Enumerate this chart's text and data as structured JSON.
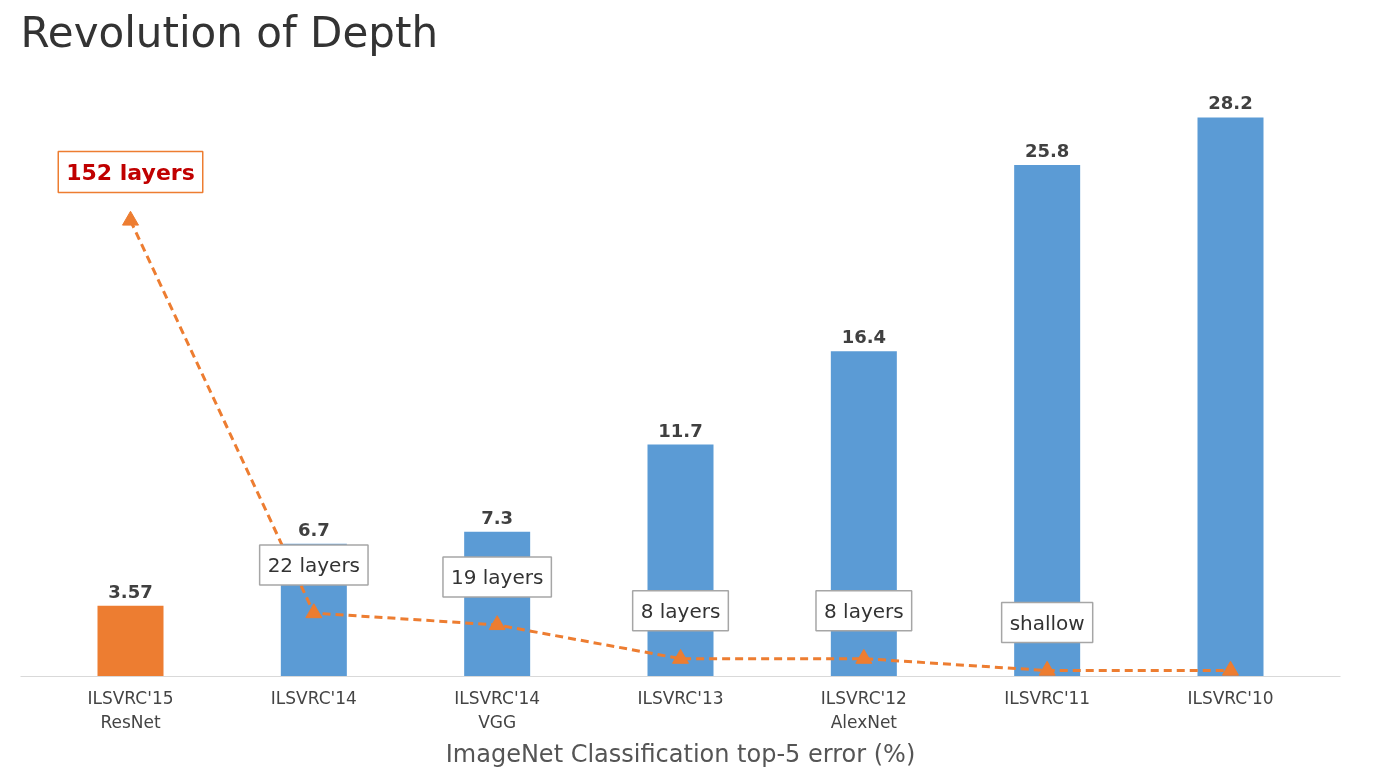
{
  "chart_data": {
    "type": "bar",
    "title": "Revolution of Depth",
    "xlabel": "ImageNet Classification top-5 error (%)",
    "categories": [
      "ILSVRC'15\nResNet",
      "ILSVRC'14",
      "ILSVRC'14\nVGG",
      "ILSVRC'13",
      "ILSVRC'12\nAlexNet",
      "ILSVRC'11",
      "ILSVRC'10"
    ],
    "series": [
      {
        "colors": [
          "#ed7d31",
          "#5b9bd5",
          "#5b9bd5",
          "#5b9bd5",
          "#5b9bd5",
          "#5b9bd5",
          "#5b9bd5"
        ],
        "values": [
          3.57,
          6.7,
          7.3,
          11.7,
          16.4,
          25.8,
          28.2
        ],
        "value_labels": [
          "3.57",
          "6.7",
          "7.3",
          "11.7",
          "16.4",
          "25.8",
          "28.2"
        ]
      },
      {
        "type": "line",
        "color": "#ed7d31",
        "marker": "triangle",
        "line_style": "dashed",
        "values": [
          23.0,
          3.2,
          2.6,
          0.9,
          0.9,
          0.3,
          0.3
        ]
      }
    ],
    "annotations": [
      "152 layers",
      "22 layers",
      "19 layers",
      "8 layers",
      "8 layers",
      "shallow"
    ],
    "grid": false
  }
}
